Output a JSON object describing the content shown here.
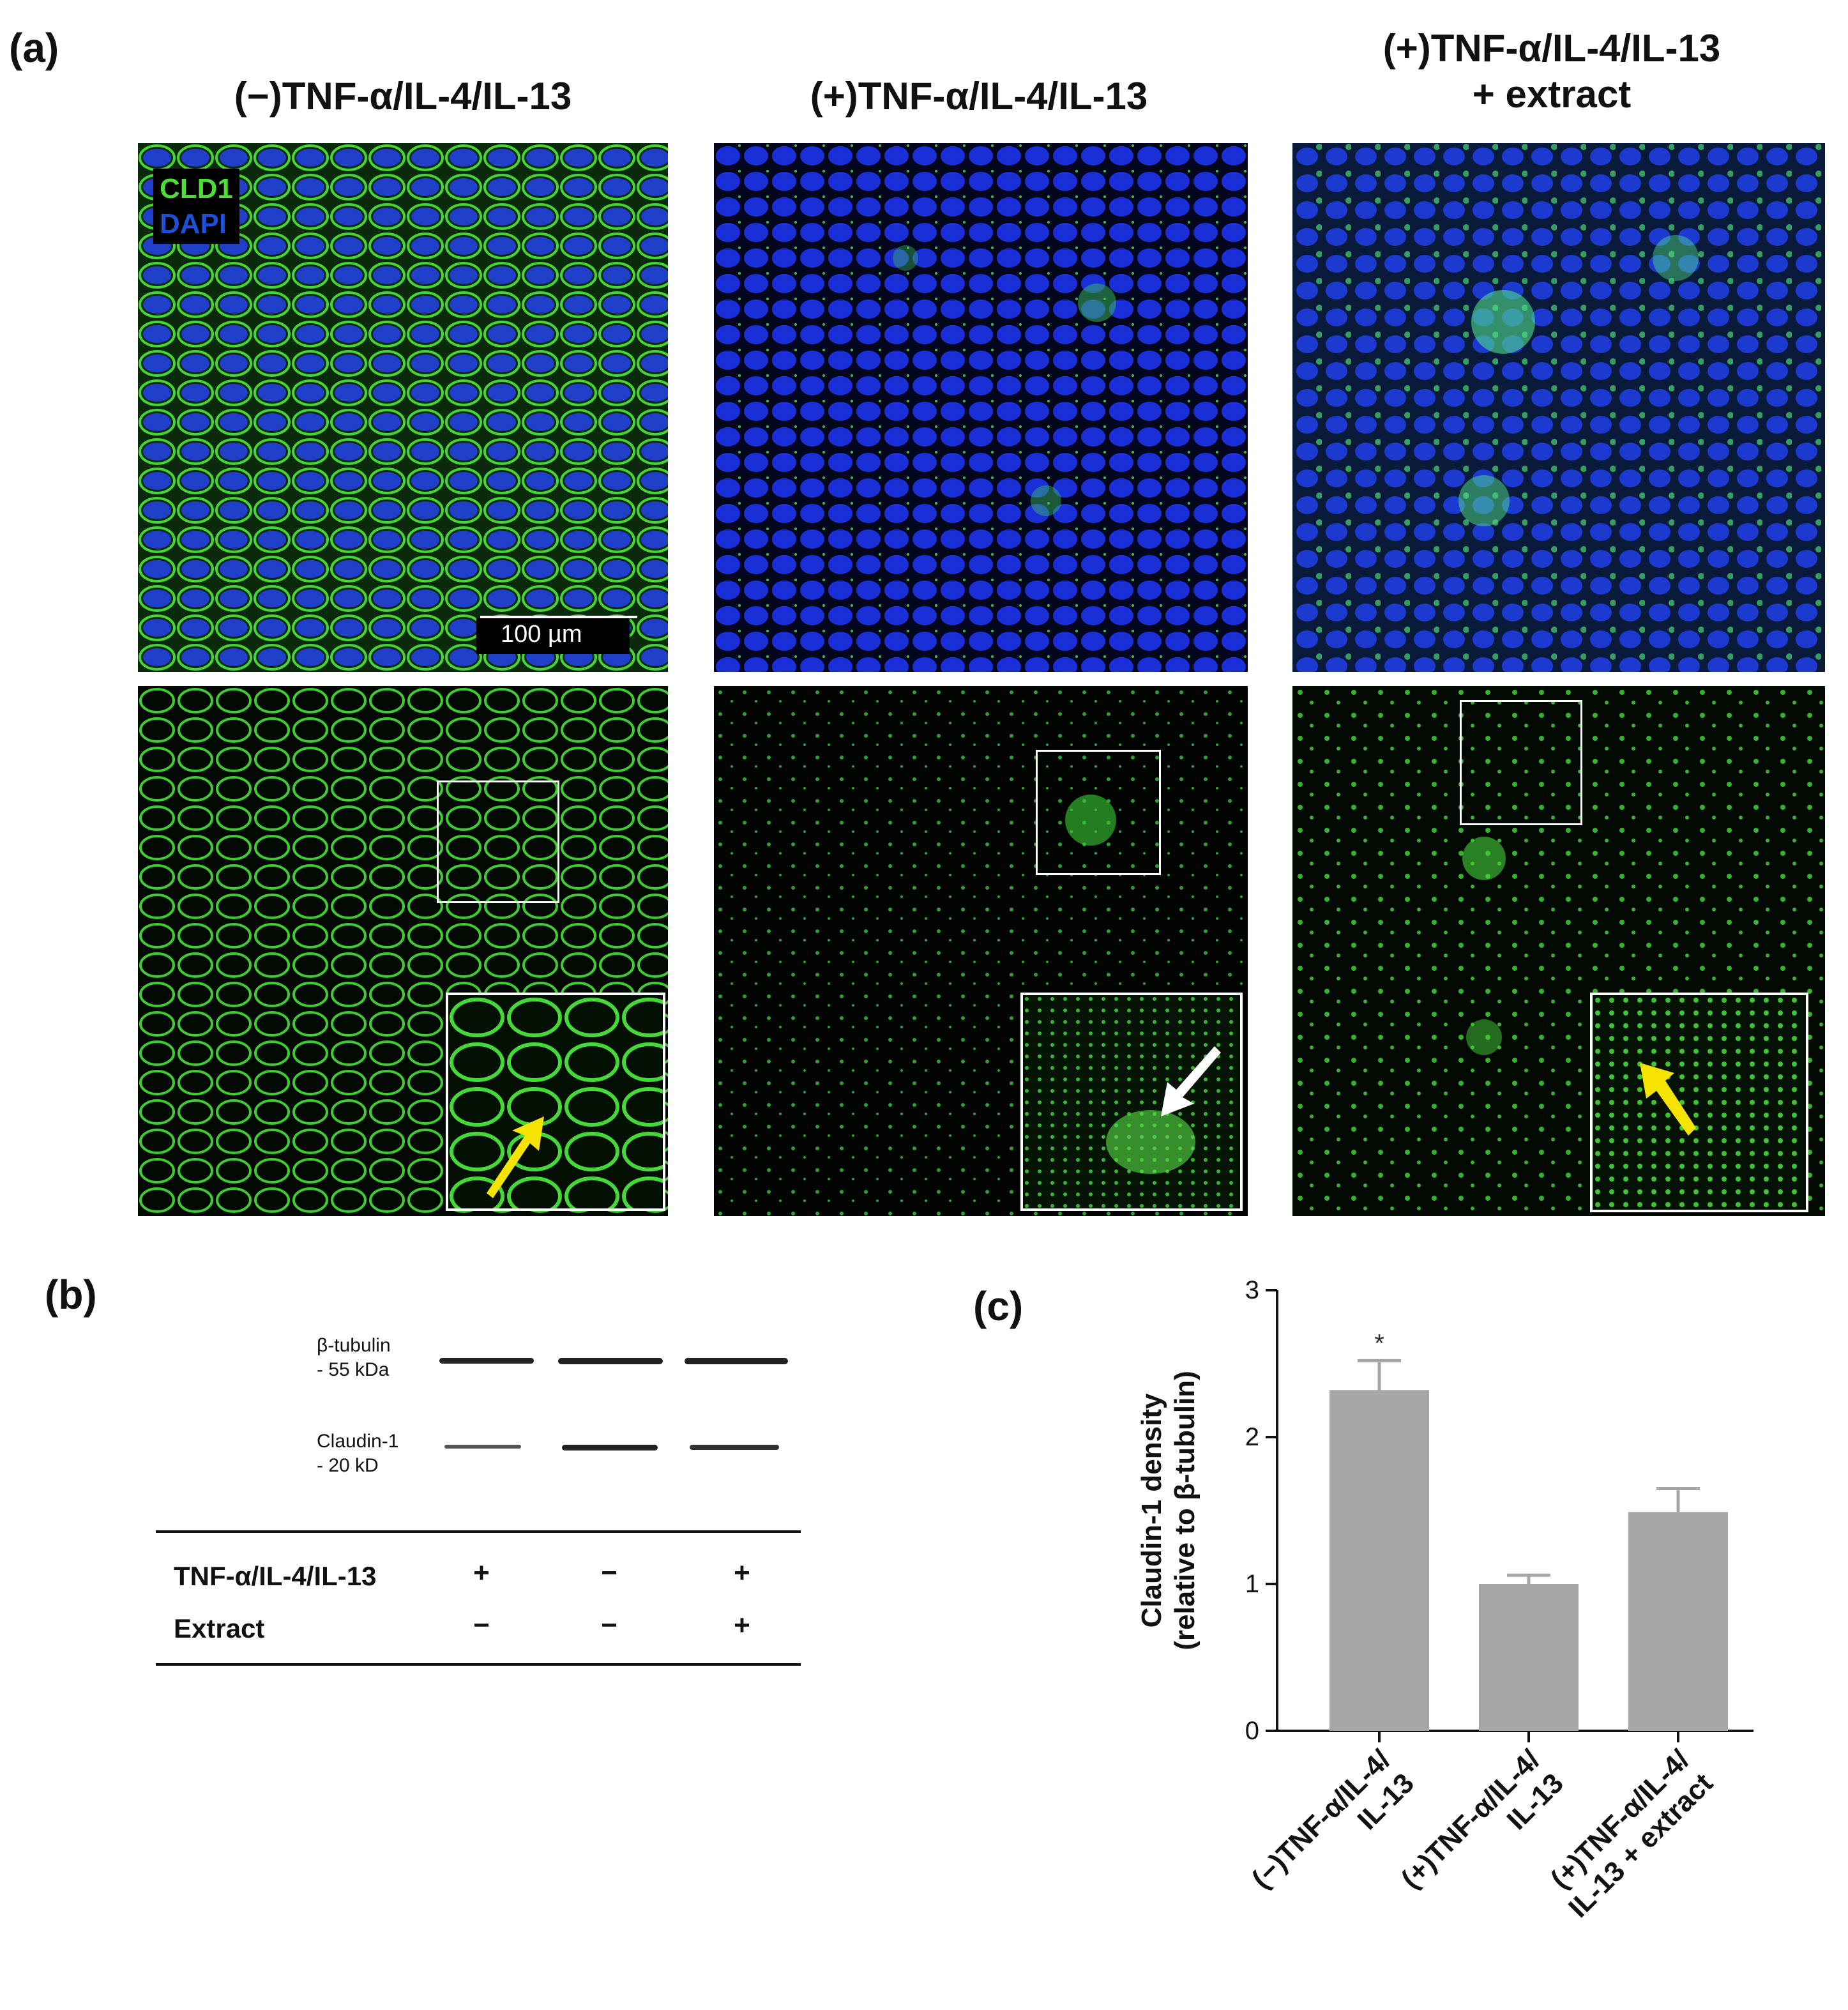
{
  "panel_a": {
    "letter": "(a)",
    "columns": [
      {
        "title": "(−)TNF-α/IL-4/IL-13"
      },
      {
        "title": "(+)TNF-α/IL-4/IL-13"
      },
      {
        "title": "(+)TNF-α/IL-4/IL-13\n+ extract"
      }
    ],
    "legend": {
      "cld1": "CLD1",
      "dapi": "DAPI",
      "cld1_color": "#4fdc3a",
      "dapi_color": "#1f4fd6"
    },
    "scale_bar": "100 µm",
    "arrow_colors": {
      "yellow": "#f5e400",
      "white": "#ffffff"
    }
  },
  "panel_b": {
    "letter": "(b)",
    "bands": [
      {
        "label": "β-tubulin\n- 55 kDa"
      },
      {
        "label": "Claudin-1\n- 20 kD"
      }
    ],
    "table": {
      "rows": [
        {
          "label": "TNF-α/IL-4/IL-13",
          "values": [
            "+",
            "−",
            "+"
          ]
        },
        {
          "label": "Extract",
          "values": [
            "−",
            "−",
            "+"
          ]
        }
      ]
    }
  },
  "panel_c": {
    "letter": "(c)",
    "chart_data": {
      "type": "bar",
      "categories": [
        "(−)TNF-α/IL-4/\nIL-13",
        "(+)TNF-α/IL-4/\nIL-13",
        "(+)TNF-α/IL-4/\nIL-13 + extract"
      ],
      "values": [
        2.32,
        1.0,
        1.49
      ],
      "errors": [
        0.2,
        0.06,
        0.16
      ],
      "annotations": [
        "*",
        "",
        ""
      ],
      "ylabel": "Claudin-1 density\n(relative to β-tubulin)",
      "ylim": [
        0,
        3
      ],
      "yticks": [
        "0",
        "1",
        "2",
        "3"
      ],
      "bar_color": "#a6a6a8",
      "grid": false
    }
  }
}
